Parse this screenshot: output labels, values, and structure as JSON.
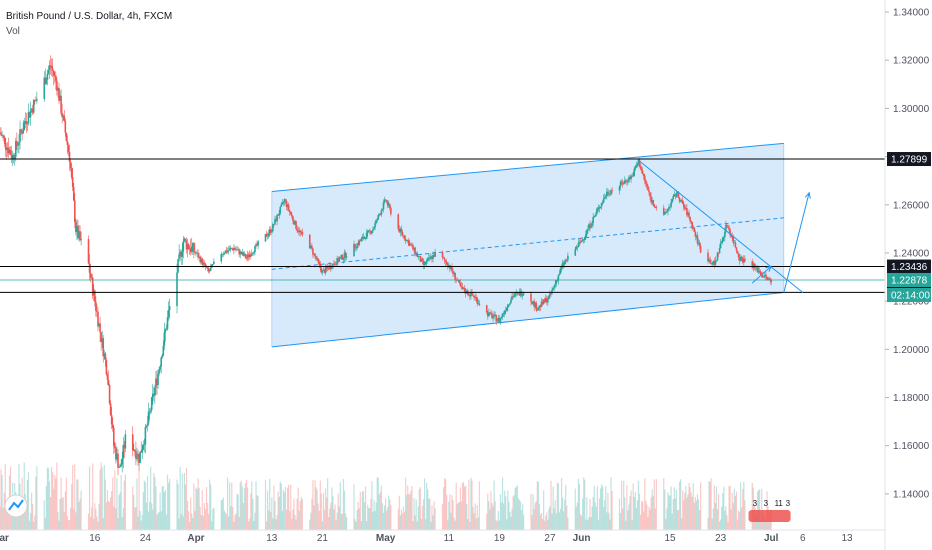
{
  "header": {
    "title": "British Pound / U.S. Dollar, 4h, FXCM",
    "indicator": "Vol"
  },
  "colors": {
    "up": "#26a69a",
    "down": "#ef5350",
    "channel_fill": "#cfe6fb",
    "channel_line": "#2196f3",
    "price_tag_bg": "#26a69a",
    "level_line": "#000000"
  },
  "logo_icon": "tradingview-logo-icon",
  "chart_data": {
    "type": "candlestick",
    "symbol": "GBPUSD",
    "timeframe": "4h",
    "y_axis": {
      "position": "right",
      "range": [
        1.125,
        1.345
      ],
      "ticks": [
        "1.34000",
        "1.32000",
        "1.30000",
        "1.28000",
        "1.26000",
        "1.24000",
        "1.22000",
        "1.20000",
        "1.18000",
        "1.16000",
        "1.14000"
      ]
    },
    "x_axis": {
      "range": [
        "2020-03-01",
        "2020-07-19"
      ],
      "ticks": [
        {
          "date": "2020-03-01",
          "label": "Mar"
        },
        {
          "date": "2020-03-16",
          "label": "16"
        },
        {
          "date": "2020-03-24",
          "label": "24"
        },
        {
          "date": "2020-04-01",
          "label": "Apr"
        },
        {
          "date": "2020-04-13",
          "label": "13"
        },
        {
          "date": "2020-04-21",
          "label": "21"
        },
        {
          "date": "2020-05-01",
          "label": "May"
        },
        {
          "date": "2020-05-11",
          "label": "11"
        },
        {
          "date": "2020-05-19",
          "label": "19"
        },
        {
          "date": "2020-05-27",
          "label": "27"
        },
        {
          "date": "2020-06-01",
          "label": "Jun"
        },
        {
          "date": "2020-06-15",
          "label": "15"
        },
        {
          "date": "2020-06-23",
          "label": "23"
        },
        {
          "date": "2020-07-01",
          "label": "Jul"
        },
        {
          "date": "2020-07-06",
          "label": "6"
        },
        {
          "date": "2020-07-13",
          "label": "13"
        }
      ]
    },
    "price_path": [
      [
        "2020-03-01",
        1.29
      ],
      [
        "2020-03-03",
        1.28
      ],
      [
        "2020-03-05",
        1.295
      ],
      [
        "2020-03-07",
        1.305
      ],
      [
        "2020-03-09",
        1.318
      ],
      [
        "2020-03-10",
        1.31
      ],
      [
        "2020-03-12",
        1.28
      ],
      [
        "2020-03-13",
        1.25
      ],
      [
        "2020-03-15",
        1.235
      ],
      [
        "2020-03-16",
        1.22
      ],
      [
        "2020-03-18",
        1.19
      ],
      [
        "2020-03-19",
        1.16
      ],
      [
        "2020-03-20",
        1.15
      ],
      [
        "2020-03-21",
        1.165
      ],
      [
        "2020-03-23",
        1.155
      ],
      [
        "2020-03-24",
        1.165
      ],
      [
        "2020-03-26",
        1.19
      ],
      [
        "2020-03-28",
        1.22
      ],
      [
        "2020-03-30",
        1.245
      ],
      [
        "2020-04-01",
        1.24
      ],
      [
        "2020-04-03",
        1.232
      ],
      [
        "2020-04-05",
        1.24
      ],
      [
        "2020-04-07",
        1.242
      ],
      [
        "2020-04-09",
        1.238
      ],
      [
        "2020-04-11",
        1.244
      ],
      [
        "2020-04-13",
        1.25
      ],
      [
        "2020-04-15",
        1.262
      ],
      [
        "2020-04-17",
        1.25
      ],
      [
        "2020-04-19",
        1.243
      ],
      [
        "2020-04-21",
        1.232
      ],
      [
        "2020-04-23",
        1.236
      ],
      [
        "2020-04-25",
        1.24
      ],
      [
        "2020-04-27",
        1.245
      ],
      [
        "2020-04-29",
        1.25
      ],
      [
        "2020-05-01",
        1.262
      ],
      [
        "2020-05-03",
        1.25
      ],
      [
        "2020-05-05",
        1.243
      ],
      [
        "2020-05-07",
        1.235
      ],
      [
        "2020-05-09",
        1.24
      ],
      [
        "2020-05-11",
        1.235
      ],
      [
        "2020-05-13",
        1.225
      ],
      [
        "2020-05-15",
        1.222
      ],
      [
        "2020-05-17",
        1.215
      ],
      [
        "2020-05-19",
        1.212
      ],
      [
        "2020-05-21",
        1.222
      ],
      [
        "2020-05-23",
        1.224
      ],
      [
        "2020-05-25",
        1.217
      ],
      [
        "2020-05-27",
        1.222
      ],
      [
        "2020-05-29",
        1.235
      ],
      [
        "2020-06-01",
        1.245
      ],
      [
        "2020-06-03",
        1.255
      ],
      [
        "2020-06-05",
        1.265
      ],
      [
        "2020-06-07",
        1.268
      ],
      [
        "2020-06-09",
        1.272
      ],
      [
        "2020-06-10",
        1.278
      ],
      [
        "2020-06-12",
        1.262
      ],
      [
        "2020-06-14",
        1.255
      ],
      [
        "2020-06-16",
        1.265
      ],
      [
        "2020-06-18",
        1.255
      ],
      [
        "2020-06-20",
        1.24
      ],
      [
        "2020-06-22",
        1.235
      ],
      [
        "2020-06-24",
        1.252
      ],
      [
        "2020-06-26",
        1.238
      ],
      [
        "2020-06-28",
        1.235
      ],
      [
        "2020-06-30",
        1.23
      ],
      [
        "2020-07-01",
        1.228
      ]
    ],
    "volume_scale_max": 1.0,
    "horizontal_levels": [
      {
        "price": 1.27899,
        "label": "1.27899"
      },
      {
        "price": 1.23436,
        "label": "1.23436"
      },
      {
        "price": 1.22366,
        "label": "1.22366"
      }
    ],
    "current_price": {
      "price": 1.22878,
      "label": "1.22878",
      "countdown": "02:14:00"
    },
    "channel": {
      "start_date": "2020-04-13",
      "end_date": "2020-07-03",
      "upper": [
        1.2655,
        1.2855
      ],
      "lower": [
        1.201,
        1.2236
      ],
      "mid_dashed": [
        1.2332,
        1.2546
      ]
    },
    "trendline": {
      "from": [
        "2020-06-10",
        1.2785
      ],
      "to": [
        "2020-07-06",
        1.2236
      ]
    },
    "projection_arrow": {
      "from": [
        "2020-07-03",
        1.2236
      ],
      "to": [
        "2020-07-07",
        1.265
      ]
    },
    "small_arrow": {
      "from": [
        "2020-06-28",
        1.2275
      ],
      "to": [
        "2020-07-01",
        1.2345
      ]
    },
    "events_badge": [
      "3",
      "3",
      "11",
      "3"
    ]
  }
}
